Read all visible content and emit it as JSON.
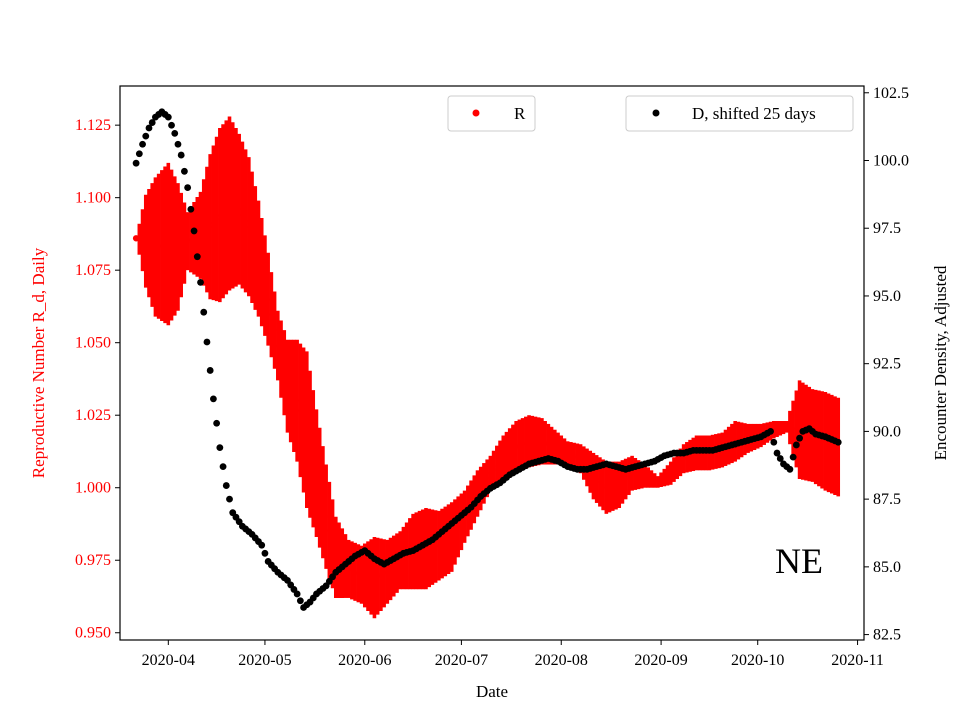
{
  "chart_data": {
    "type": "scatter",
    "xlabel": "Date",
    "ylabel_left": "Reproductive Number R_d, Daily",
    "ylabel_right": "Encounter Density, Adjusted",
    "annotation": "NE",
    "x_ticks": [
      "2020-04",
      "2020-05",
      "2020-06",
      "2020-07",
      "2020-08",
      "2020-09",
      "2020-10",
      "2020-11"
    ],
    "x_range": [
      "2020-03-17",
      "2020-11-03"
    ],
    "y_left_ticks": [
      "0.950",
      "0.975",
      "1.000",
      "1.025",
      "1.050",
      "1.075",
      "1.100",
      "1.125"
    ],
    "y_left_range": [
      0.9475,
      1.1385
    ],
    "y_right_ticks": [
      "82.5",
      "85.0",
      "87.5",
      "90.0",
      "92.5",
      "95.0",
      "97.5",
      "100.0",
      "102.5"
    ],
    "y_right_range": [
      82.3,
      102.75
    ],
    "colors": {
      "r_series": "#ff0000",
      "d_series": "#000000",
      "left_axis_text": "#ff0000"
    },
    "legend_placement": "top-center and top-right",
    "series": [
      {
        "name": "R",
        "axis": "left",
        "color": "#ff0000",
        "start": "2020-03-22",
        "end": "2020-10-26",
        "points": [
          [
            "2020-03-22",
            1.086
          ],
          [
            "2020-03-25",
            1.085
          ],
          [
            "2020-03-28",
            1.083
          ],
          [
            "2020-04-01",
            1.084
          ],
          [
            "2020-04-04",
            1.083
          ],
          [
            "2020-04-07",
            1.085
          ],
          [
            "2020-04-11",
            1.087
          ],
          [
            "2020-04-14",
            1.09
          ],
          [
            "2020-04-17",
            1.094
          ],
          [
            "2020-04-20",
            1.098
          ],
          [
            "2020-04-23",
            1.096
          ],
          [
            "2020-04-26",
            1.09
          ],
          [
            "2020-04-29",
            1.079
          ],
          [
            "2020-05-02",
            1.065
          ],
          [
            "2020-05-05",
            1.049
          ],
          [
            "2020-05-08",
            1.035
          ],
          [
            "2020-05-11",
            1.03
          ],
          [
            "2020-05-14",
            1.02
          ],
          [
            "2020-05-17",
            1.005
          ],
          [
            "2020-05-20",
            0.99
          ],
          [
            "2020-05-23",
            0.976
          ],
          [
            "2020-05-27",
            0.972
          ],
          [
            "2020-05-31",
            0.97
          ],
          [
            "2020-06-04",
            0.969
          ],
          [
            "2020-06-08",
            0.971
          ],
          [
            "2020-06-12",
            0.975
          ],
          [
            "2020-06-16",
            0.978
          ],
          [
            "2020-06-20",
            0.979
          ],
          [
            "2020-06-24",
            0.98
          ],
          [
            "2020-06-28",
            0.983
          ],
          [
            "2020-07-02",
            0.99
          ],
          [
            "2020-07-06",
            0.998
          ],
          [
            "2020-07-10",
            1.005
          ],
          [
            "2020-07-14",
            1.01
          ],
          [
            "2020-07-18",
            1.014
          ],
          [
            "2020-07-22",
            1.016
          ],
          [
            "2020-07-26",
            1.016
          ],
          [
            "2020-07-30",
            1.014
          ],
          [
            "2020-08-03",
            1.012
          ],
          [
            "2020-08-07",
            1.01
          ],
          [
            "2020-08-11",
            1.004
          ],
          [
            "2020-08-15",
            1.0
          ],
          [
            "2020-08-19",
            1.001
          ],
          [
            "2020-08-23",
            1.005
          ],
          [
            "2020-08-27",
            1.004
          ],
          [
            "2020-08-31",
            1.002
          ],
          [
            "2020-09-04",
            1.005
          ],
          [
            "2020-09-08",
            1.01
          ],
          [
            "2020-09-12",
            1.012
          ],
          [
            "2020-09-16",
            1.012
          ],
          [
            "2020-09-20",
            1.013
          ],
          [
            "2020-09-24",
            1.016
          ],
          [
            "2020-09-28",
            1.017
          ],
          [
            "2020-10-02",
            1.018
          ],
          [
            "2020-10-06",
            1.02
          ],
          [
            "2020-10-10",
            1.021
          ],
          [
            "2020-10-14",
            1.02
          ],
          [
            "2020-10-18",
            1.018
          ],
          [
            "2020-10-22",
            1.016
          ],
          [
            "2020-10-26",
            1.014
          ]
        ],
        "band_halfwidth": [
          [
            "2020-03-22",
            0.0
          ],
          [
            "2020-03-25",
            0.016
          ],
          [
            "2020-03-28",
            0.024
          ],
          [
            "2020-04-01",
            0.028
          ],
          [
            "2020-04-04",
            0.022
          ],
          [
            "2020-04-07",
            0.01
          ],
          [
            "2020-04-11",
            0.015
          ],
          [
            "2020-04-14",
            0.025
          ],
          [
            "2020-04-17",
            0.03
          ],
          [
            "2020-04-20",
            0.03
          ],
          [
            "2020-04-23",
            0.026
          ],
          [
            "2020-04-26",
            0.024
          ],
          [
            "2020-04-29",
            0.02
          ],
          [
            "2020-05-02",
            0.016
          ],
          [
            "2020-05-05",
            0.012
          ],
          [
            "2020-05-08",
            0.016
          ],
          [
            "2020-05-11",
            0.021
          ],
          [
            "2020-05-14",
            0.027
          ],
          [
            "2020-05-17",
            0.022
          ],
          [
            "2020-05-20",
            0.018
          ],
          [
            "2020-05-23",
            0.014
          ],
          [
            "2020-05-27",
            0.01
          ],
          [
            "2020-05-31",
            0.01
          ],
          [
            "2020-06-04",
            0.014
          ],
          [
            "2020-06-08",
            0.011
          ],
          [
            "2020-06-12",
            0.01
          ],
          [
            "2020-06-16",
            0.013
          ],
          [
            "2020-06-20",
            0.014
          ],
          [
            "2020-06-24",
            0.012
          ],
          [
            "2020-06-28",
            0.012
          ],
          [
            "2020-07-02",
            0.009
          ],
          [
            "2020-07-06",
            0.008
          ],
          [
            "2020-07-10",
            0.006
          ],
          [
            "2020-07-14",
            0.008
          ],
          [
            "2020-07-18",
            0.009
          ],
          [
            "2020-07-22",
            0.009
          ],
          [
            "2020-07-26",
            0.008
          ],
          [
            "2020-07-30",
            0.006
          ],
          [
            "2020-08-03",
            0.004
          ],
          [
            "2020-08-07",
            0.005
          ],
          [
            "2020-08-11",
            0.008
          ],
          [
            "2020-08-15",
            0.009
          ],
          [
            "2020-08-19",
            0.008
          ],
          [
            "2020-08-23",
            0.006
          ],
          [
            "2020-08-27",
            0.004
          ],
          [
            "2020-08-31",
            0.002
          ],
          [
            "2020-09-04",
            0.004
          ],
          [
            "2020-09-08",
            0.005
          ],
          [
            "2020-09-12",
            0.006
          ],
          [
            "2020-09-16",
            0.006
          ],
          [
            "2020-09-20",
            0.006
          ],
          [
            "2020-09-24",
            0.007
          ],
          [
            "2020-09-28",
            0.005
          ],
          [
            "2020-10-02",
            0.004
          ],
          [
            "2020-10-06",
            0.003
          ],
          [
            "2020-10-10",
            0.002
          ],
          [
            "2020-10-14",
            0.017
          ],
          [
            "2020-10-18",
            0.016
          ],
          [
            "2020-10-22",
            0.017
          ],
          [
            "2020-10-26",
            0.017
          ]
        ]
      },
      {
        "name": "D, shifted 25 days",
        "axis": "right",
        "color": "#000000",
        "start": "2020-03-22",
        "end": "2020-10-26",
        "points": [
          [
            "2020-03-22",
            99.9
          ],
          [
            "2020-03-24",
            100.6
          ],
          [
            "2020-03-26",
            101.2
          ],
          [
            "2020-03-28",
            101.6
          ],
          [
            "2020-03-30",
            101.8
          ],
          [
            "2020-04-01",
            101.6
          ],
          [
            "2020-04-03",
            101.0
          ],
          [
            "2020-04-05",
            100.2
          ],
          [
            "2020-04-07",
            99.0
          ],
          [
            "2020-04-09",
            97.4
          ],
          [
            "2020-04-11",
            95.5
          ],
          [
            "2020-04-13",
            93.3
          ],
          [
            "2020-04-15",
            91.2
          ],
          [
            "2020-04-17",
            89.4
          ],
          [
            "2020-04-19",
            88.0
          ],
          [
            "2020-04-21",
            87.0
          ],
          [
            "2020-04-24",
            86.5
          ],
          [
            "2020-04-27",
            86.2
          ],
          [
            "2020-04-30",
            85.8
          ],
          [
            "2020-05-02",
            85.2
          ],
          [
            "2020-05-05",
            84.8
          ],
          [
            "2020-05-08",
            84.5
          ],
          [
            "2020-05-11",
            84.0
          ],
          [
            "2020-05-13",
            83.5
          ],
          [
            "2020-05-15",
            83.7
          ],
          [
            "2020-05-17",
            84.0
          ],
          [
            "2020-05-20",
            84.3
          ],
          [
            "2020-05-23",
            84.8
          ],
          [
            "2020-05-26",
            85.1
          ],
          [
            "2020-05-29",
            85.4
          ],
          [
            "2020-06-01",
            85.6
          ],
          [
            "2020-06-04",
            85.3
          ],
          [
            "2020-06-07",
            85.1
          ],
          [
            "2020-06-10",
            85.3
          ],
          [
            "2020-06-13",
            85.5
          ],
          [
            "2020-06-16",
            85.6
          ],
          [
            "2020-06-19",
            85.8
          ],
          [
            "2020-06-22",
            86.0
          ],
          [
            "2020-06-25",
            86.3
          ],
          [
            "2020-06-28",
            86.6
          ],
          [
            "2020-07-01",
            86.9
          ],
          [
            "2020-07-04",
            87.2
          ],
          [
            "2020-07-07",
            87.6
          ],
          [
            "2020-07-10",
            87.9
          ],
          [
            "2020-07-13",
            88.1
          ],
          [
            "2020-07-16",
            88.4
          ],
          [
            "2020-07-19",
            88.6
          ],
          [
            "2020-07-22",
            88.8
          ],
          [
            "2020-07-25",
            88.9
          ],
          [
            "2020-07-28",
            89.0
          ],
          [
            "2020-07-31",
            88.9
          ],
          [
            "2020-08-03",
            88.7
          ],
          [
            "2020-08-06",
            88.6
          ],
          [
            "2020-08-09",
            88.6
          ],
          [
            "2020-08-12",
            88.7
          ],
          [
            "2020-08-15",
            88.8
          ],
          [
            "2020-08-18",
            88.7
          ],
          [
            "2020-08-21",
            88.6
          ],
          [
            "2020-08-24",
            88.7
          ],
          [
            "2020-08-27",
            88.8
          ],
          [
            "2020-08-30",
            88.9
          ],
          [
            "2020-09-02",
            89.1
          ],
          [
            "2020-09-05",
            89.2
          ],
          [
            "2020-09-08",
            89.2
          ],
          [
            "2020-09-11",
            89.3
          ],
          [
            "2020-09-14",
            89.3
          ],
          [
            "2020-09-17",
            89.3
          ],
          [
            "2020-09-20",
            89.4
          ],
          [
            "2020-09-23",
            89.5
          ],
          [
            "2020-09-26",
            89.6
          ],
          [
            "2020-09-29",
            89.7
          ],
          [
            "2020-10-02",
            89.8
          ],
          [
            "2020-10-05",
            90.0
          ],
          [
            "2020-10-07",
            89.2
          ],
          [
            "2020-10-09",
            88.8
          ],
          [
            "2020-10-11",
            88.6
          ],
          [
            "2020-10-13",
            89.5
          ],
          [
            "2020-10-15",
            90.0
          ],
          [
            "2020-10-17",
            90.1
          ],
          [
            "2020-10-19",
            89.9
          ],
          [
            "2020-10-22",
            89.8
          ],
          [
            "2020-10-24",
            89.7
          ],
          [
            "2020-10-26",
            89.6
          ]
        ]
      }
    ]
  }
}
